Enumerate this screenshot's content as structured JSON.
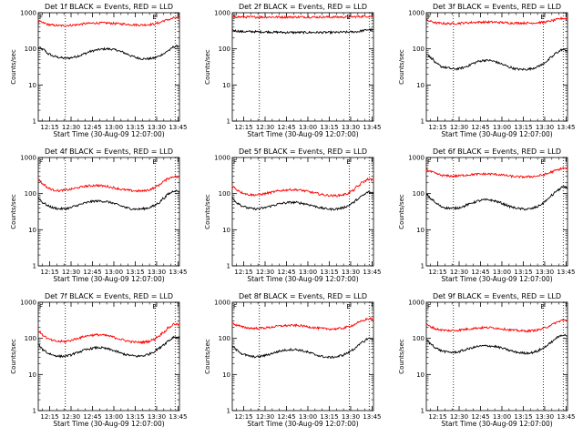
{
  "figure": {
    "background": "#ffffff",
    "axis_color": "#000000"
  },
  "chart_data": [
    {
      "type": "line",
      "title": "Det 1f BLACK = Events, RED = LLD",
      "xlabel": "Start Time (30-Aug-09 12:07:00)",
      "ylabel": "Counts/sec",
      "yscale": "log",
      "ylim": [
        1,
        1000
      ],
      "xlim": [
        "12:07",
        "13:46"
      ],
      "x_ticks": [
        "12:15",
        "12:30",
        "12:45",
        "13:00",
        "13:15",
        "13:30",
        "13:45"
      ],
      "y_ticks": [
        "1",
        "10",
        "100",
        "1000"
      ],
      "markers": [
        "12:26",
        "13:29",
        "13:43"
      ],
      "corner_labels": [
        "F",
        "E"
      ],
      "series": [
        {
          "color": "#000000",
          "values": [
            110,
            95,
            72,
            62,
            58,
            55,
            56,
            60,
            66,
            75,
            85,
            92,
            97,
            100,
            98,
            92,
            82,
            72,
            62,
            56,
            53,
            53,
            55,
            62,
            74,
            92,
            115,
            120
          ]
        },
        {
          "color": "#ff0000",
          "values": [
            580,
            520,
            470,
            450,
            440,
            440,
            450,
            460,
            480,
            500,
            510,
            520,
            520,
            520,
            510,
            500,
            490,
            480,
            470,
            460,
            460,
            470,
            480,
            520,
            600,
            650,
            720,
            700
          ]
        }
      ]
    },
    {
      "type": "line",
      "title": "Det 2f BLACK = Events, RED = LLD",
      "xlabel": "Start Time (30-Aug-09 12:07:00)",
      "ylabel": "Counts/sec",
      "yscale": "log",
      "ylim": [
        1,
        1000
      ],
      "xlim": [
        "12:07",
        "13:46"
      ],
      "x_ticks": [
        "12:15",
        "12:30",
        "12:45",
        "13:00",
        "13:15",
        "13:30",
        "13:45"
      ],
      "y_ticks": [
        "1",
        "10",
        "100",
        "1000"
      ],
      "markers": [
        "12:26",
        "13:29",
        "13:43"
      ],
      "corner_labels": [
        "F",
        "E"
      ],
      "series": [
        {
          "color": "#000000",
          "values": [
            330,
            310,
            300,
            300,
            300,
            295,
            295,
            295,
            290,
            290,
            285,
            285,
            285,
            285,
            285,
            285,
            285,
            285,
            285,
            285,
            285,
            290,
            290,
            295,
            300,
            320,
            340,
            330
          ]
        },
        {
          "color": "#ff0000",
          "values": [
            780,
            770,
            760,
            760,
            760,
            760,
            760,
            760,
            760,
            760,
            760,
            760,
            760,
            760,
            760,
            760,
            760,
            760,
            760,
            760,
            760,
            760,
            760,
            770,
            780,
            790,
            800,
            800
          ]
        }
      ]
    },
    {
      "type": "line",
      "title": "Det 3f BLACK = Events, RED = LLD",
      "xlabel": "Start Time (30-Aug-09 12:07:00)",
      "ylabel": "Counts/sec",
      "yscale": "log",
      "ylim": [
        1,
        1000
      ],
      "xlim": [
        "12:07",
        "13:46"
      ],
      "x_ticks": [
        "12:15",
        "12:30",
        "12:45",
        "13:00",
        "13:15",
        "13:30",
        "13:45"
      ],
      "y_ticks": [
        "1",
        "10",
        "100",
        "1000"
      ],
      "markers": [
        "12:26",
        "13:29",
        "13:43"
      ],
      "corner_labels": [
        "F",
        "E"
      ],
      "series": [
        {
          "color": "#000000",
          "values": [
            75,
            55,
            38,
            32,
            30,
            28,
            28,
            30,
            34,
            40,
            45,
            48,
            48,
            45,
            40,
            35,
            31,
            28,
            27,
            27,
            28,
            31,
            36,
            45,
            60,
            80,
            95,
            90
          ]
        },
        {
          "color": "#ff0000",
          "values": [
            620,
            570,
            520,
            510,
            500,
            500,
            510,
            520,
            530,
            540,
            550,
            550,
            550,
            550,
            540,
            530,
            520,
            520,
            520,
            520,
            520,
            530,
            540,
            560,
            600,
            650,
            700,
            680
          ]
        }
      ]
    },
    {
      "type": "line",
      "title": "Det 4f BLACK = Events, RED = LLD",
      "xlabel": "Start Time (30-Aug-09 12:07:00)",
      "ylabel": "Counts/sec",
      "yscale": "log",
      "ylim": [
        1,
        1000
      ],
      "xlim": [
        "12:07",
        "13:46"
      ],
      "x_ticks": [
        "12:15",
        "12:30",
        "12:45",
        "13:00",
        "13:15",
        "13:30",
        "13:45"
      ],
      "y_ticks": [
        "1",
        "10",
        "100",
        "1000"
      ],
      "markers": [
        "12:26",
        "13:29",
        "13:43"
      ],
      "corner_labels": [
        "F",
        "E"
      ],
      "series": [
        {
          "color": "#000000",
          "values": [
            75,
            55,
            45,
            40,
            38,
            38,
            40,
            45,
            50,
            55,
            60,
            62,
            62,
            60,
            56,
            50,
            45,
            40,
            38,
            37,
            38,
            40,
            45,
            55,
            75,
            100,
            120,
            115
          ]
        },
        {
          "color": "#ff0000",
          "values": [
            250,
            180,
            140,
            125,
            120,
            125,
            130,
            140,
            150,
            160,
            165,
            170,
            165,
            160,
            150,
            140,
            130,
            125,
            120,
            118,
            118,
            125,
            140,
            170,
            220,
            270,
            300,
            280
          ]
        }
      ]
    },
    {
      "type": "line",
      "title": "Det 5f BLACK = Events, RED = LLD",
      "xlabel": "Start Time (30-Aug-09 12:07:00)",
      "ylabel": "Counts/sec",
      "yscale": "log",
      "ylim": [
        1,
        1000
      ],
      "xlim": [
        "12:07",
        "13:46"
      ],
      "x_ticks": [
        "12:15",
        "12:30",
        "12:45",
        "13:00",
        "13:15",
        "13:30",
        "13:45"
      ],
      "y_ticks": [
        "1",
        "10",
        "100",
        "1000"
      ],
      "markers": [
        "12:26",
        "13:29",
        "13:43"
      ],
      "corner_labels": [
        "F",
        "E"
      ],
      "series": [
        {
          "color": "#000000",
          "values": [
            75,
            55,
            45,
            40,
            38,
            38,
            40,
            44,
            48,
            52,
            55,
            57,
            57,
            55,
            52,
            48,
            44,
            40,
            38,
            37,
            38,
            40,
            45,
            55,
            70,
            90,
            110,
            105
          ]
        },
        {
          "color": "#ff0000",
          "values": [
            160,
            125,
            105,
            95,
            92,
            93,
            98,
            105,
            112,
            120,
            125,
            128,
            128,
            125,
            118,
            110,
            102,
            95,
            90,
            88,
            88,
            92,
            100,
            120,
            160,
            210,
            250,
            240
          ]
        }
      ]
    },
    {
      "type": "line",
      "title": "Det 6f BLACK = Events, RED = LLD",
      "xlabel": "Start Time (30-Aug-09 12:07:00)",
      "ylabel": "Counts/sec",
      "yscale": "log",
      "ylim": [
        1,
        1000
      ],
      "xlim": [
        "12:07",
        "13:46"
      ],
      "x_ticks": [
        "12:15",
        "12:30",
        "12:45",
        "13:00",
        "13:15",
        "13:30",
        "13:45"
      ],
      "y_ticks": [
        "1",
        "10",
        "100",
        "1000"
      ],
      "markers": [
        "12:26",
        "13:29",
        "13:43"
      ],
      "corner_labels": [
        "F",
        "E"
      ],
      "series": [
        {
          "color": "#000000",
          "values": [
            95,
            70,
            52,
            43,
            40,
            39,
            40,
            44,
            50,
            57,
            63,
            67,
            67,
            63,
            57,
            50,
            44,
            40,
            38,
            37,
            38,
            42,
            50,
            65,
            90,
            120,
            150,
            145
          ]
        },
        {
          "color": "#ff0000",
          "values": [
            460,
            400,
            350,
            320,
            310,
            305,
            310,
            320,
            330,
            340,
            345,
            350,
            350,
            345,
            335,
            320,
            305,
            295,
            290,
            290,
            295,
            305,
            320,
            350,
            400,
            450,
            500,
            490
          ]
        }
      ]
    },
    {
      "type": "line",
      "title": "Det 7f BLACK = Events, RED = LLD",
      "xlabel": "Start Time (30-Aug-09 12:07:00)",
      "ylabel": "Counts/sec",
      "yscale": "log",
      "ylim": [
        1,
        1000
      ],
      "xlim": [
        "12:07",
        "13:46"
      ],
      "x_ticks": [
        "12:15",
        "12:30",
        "12:45",
        "13:00",
        "13:15",
        "13:30",
        "13:45"
      ],
      "y_ticks": [
        "1",
        "10",
        "100",
        "1000"
      ],
      "markers": [
        "12:26",
        "13:29",
        "13:43"
      ],
      "corner_labels": [
        "F",
        "E"
      ],
      "series": [
        {
          "color": "#000000",
          "values": [
            65,
            48,
            38,
            34,
            32,
            32,
            34,
            38,
            43,
            48,
            52,
            55,
            55,
            52,
            48,
            43,
            38,
            35,
            33,
            32,
            33,
            36,
            42,
            52,
            68,
            88,
            110,
            105
          ]
        },
        {
          "color": "#ff0000",
          "values": [
            160,
            120,
            95,
            85,
            82,
            82,
            86,
            95,
            105,
            115,
            122,
            125,
            125,
            120,
            112,
            102,
            92,
            85,
            80,
            78,
            78,
            82,
            92,
            115,
            150,
            200,
            250,
            240
          ]
        }
      ]
    },
    {
      "type": "line",
      "title": "Det 8f BLACK = Events, RED = LLD",
      "xlabel": "Start Time (30-Aug-09 12:07:00)",
      "ylabel": "Counts/sec",
      "yscale": "log",
      "ylim": [
        1,
        1000
      ],
      "xlim": [
        "12:07",
        "13:46"
      ],
      "x_ticks": [
        "12:15",
        "12:30",
        "12:45",
        "13:00",
        "13:15",
        "13:30",
        "13:45"
      ],
      "y_ticks": [
        "1",
        "10",
        "100",
        "1000"
      ],
      "markers": [
        "12:26",
        "13:29",
        "13:43"
      ],
      "corner_labels": [
        "F",
        "E"
      ],
      "series": [
        {
          "color": "#000000",
          "values": [
            60,
            46,
            37,
            33,
            31,
            31,
            33,
            36,
            40,
            44,
            47,
            49,
            49,
            47,
            43,
            39,
            35,
            32,
            30,
            30,
            31,
            34,
            39,
            48,
            62,
            80,
            100,
            95
          ]
        },
        {
          "color": "#ff0000",
          "values": [
            260,
            230,
            205,
            195,
            190,
            190,
            195,
            200,
            210,
            220,
            225,
            228,
            228,
            225,
            215,
            205,
            195,
            188,
            184,
            182,
            184,
            190,
            205,
            230,
            270,
            310,
            350,
            340
          ]
        }
      ]
    },
    {
      "type": "line",
      "title": "Det 9f BLACK = Events, RED = LLD",
      "xlabel": "Start Time (30-Aug-09 12:07:00)",
      "ylabel": "Counts/sec",
      "yscale": "log",
      "ylim": [
        1,
        1000
      ],
      "xlim": [
        "12:07",
        "13:46"
      ],
      "x_ticks": [
        "12:15",
        "12:30",
        "12:45",
        "13:00",
        "13:15",
        "13:30",
        "13:45"
      ],
      "y_ticks": [
        "1",
        "10",
        "100",
        "1000"
      ],
      "markers": [
        "12:26",
        "13:29",
        "13:43"
      ],
      "corner_labels": [
        "F",
        "E"
      ],
      "series": [
        {
          "color": "#000000",
          "values": [
            90,
            68,
            52,
            45,
            42,
            41,
            42,
            46,
            51,
            56,
            60,
            62,
            62,
            60,
            56,
            51,
            46,
            42,
            40,
            39,
            40,
            43,
            50,
            62,
            80,
            105,
            125,
            120
          ]
        },
        {
          "color": "#ff0000",
          "values": [
            240,
            205,
            180,
            170,
            165,
            165,
            168,
            175,
            182,
            190,
            195,
            198,
            198,
            195,
            188,
            180,
            172,
            166,
            162,
            160,
            162,
            168,
            180,
            205,
            240,
            280,
            320,
            310
          ]
        }
      ]
    }
  ]
}
